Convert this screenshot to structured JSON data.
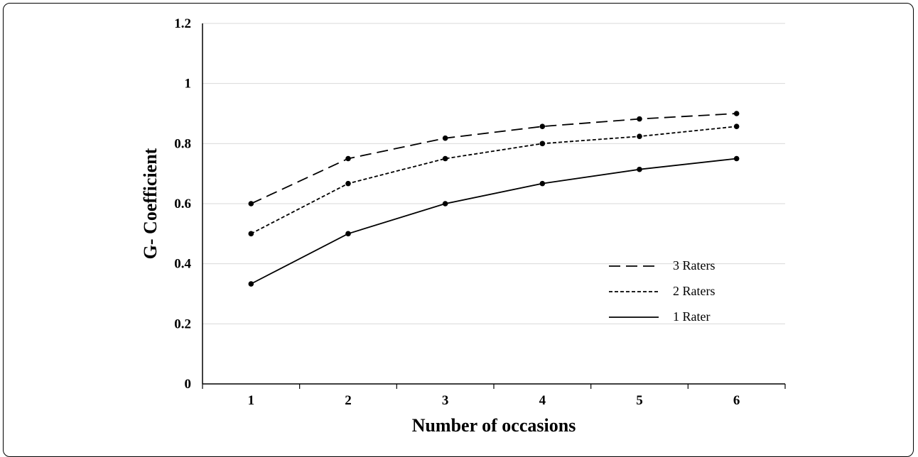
{
  "chart_data": {
    "type": "line",
    "xlabel": "Number of occasions",
    "ylabel": "G- Coefficient",
    "x": [
      1,
      2,
      3,
      4,
      5,
      6
    ],
    "xlim": [
      0.5,
      6.5
    ],
    "ylim": [
      0,
      1.2
    ],
    "yticks": [
      0,
      0.2,
      0.4,
      0.6,
      0.8,
      1,
      1.2
    ],
    "ytick_labels": [
      "0",
      "0.2",
      "0.4",
      "0.6",
      "0.8",
      "1",
      "1.2"
    ],
    "xtick_labels": [
      "1",
      "2",
      "3",
      "4",
      "5",
      "6"
    ],
    "grid": true,
    "legend_position": "lower-right",
    "series": [
      {
        "name": "3 Raters",
        "style": "long-dash",
        "color": "#000000",
        "values": [
          0.6,
          0.75,
          0.818,
          0.857,
          0.882,
          0.9
        ]
      },
      {
        "name": "2 Raters",
        "style": "short-dash",
        "color": "#000000",
        "values": [
          0.5,
          0.667,
          0.75,
          0.8,
          0.824,
          0.857
        ]
      },
      {
        "name": "1 Rater",
        "style": "solid",
        "color": "#000000",
        "values": [
          0.333,
          0.5,
          0.6,
          0.667,
          0.714,
          0.75
        ]
      }
    ]
  }
}
